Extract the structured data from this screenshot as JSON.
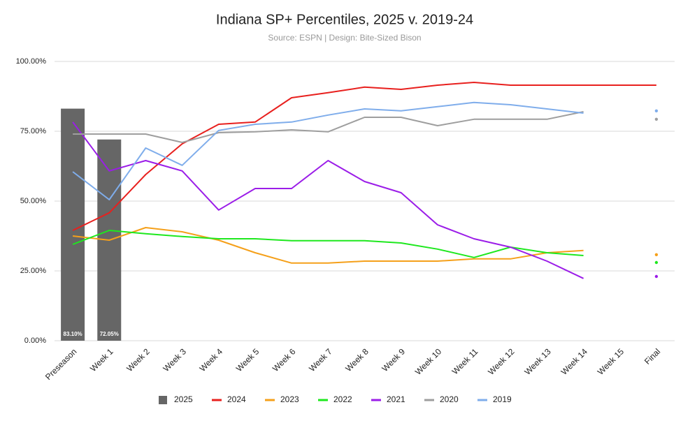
{
  "chart_data": {
    "type": "line",
    "title": "Indiana SP+ Percentiles, 2025 v. 2019-24",
    "subtitle": "Source: ESPN | Design: Bite-Sized Bison",
    "categories": [
      "Preseason",
      "Week 1",
      "Week 2",
      "Week 3",
      "Week 4",
      "Week 5",
      "Week 6",
      "Week 7",
      "Week 8",
      "Week 9",
      "Week 10",
      "Week 11",
      "Week 12",
      "Week 13",
      "Week 14",
      "Week 15",
      "Final"
    ],
    "ylim": [
      0,
      100
    ],
    "yticks": [
      {
        "value": 0,
        "label": "0.00%"
      },
      {
        "value": 25,
        "label": "25.00%"
      },
      {
        "value": 50,
        "label": "50.00%"
      },
      {
        "value": 75,
        "label": "75.00%"
      },
      {
        "value": 100,
        "label": "100.00%"
      }
    ],
    "grid": true,
    "legend": "bottom",
    "series": [
      {
        "name": "2025",
        "type": "bar",
        "color": "#666666",
        "values": [
          83.1,
          72.05,
          null,
          null,
          null,
          null,
          null,
          null,
          null,
          null,
          null,
          null,
          null,
          null,
          null,
          null,
          null
        ],
        "value_labels": [
          "83.10%",
          "72.05%",
          null,
          null,
          null,
          null,
          null,
          null,
          null,
          null,
          null,
          null,
          null,
          null,
          null,
          null,
          null
        ]
      },
      {
        "name": "2024",
        "color": "#e8201e",
        "values": [
          39.5,
          45.8,
          59.5,
          70.5,
          77.5,
          78.3,
          87,
          88.8,
          90.8,
          90,
          91.5,
          92.5,
          91.5,
          91.5,
          91.5,
          91.5,
          91.5
        ]
      },
      {
        "name": "2023",
        "color": "#f5a01a",
        "values": [
          37.5,
          36,
          40.5,
          39,
          36,
          31.5,
          27.8,
          27.8,
          28.5,
          28.5,
          28.5,
          29.3,
          29.3,
          31.5,
          32.3,
          null,
          30.8
        ]
      },
      {
        "name": "2022",
        "color": "#1ee81e",
        "values": [
          34.5,
          39.5,
          38.3,
          37.3,
          36.5,
          36.5,
          35.8,
          35.8,
          35.8,
          35,
          32.8,
          29.8,
          33.5,
          31.5,
          30.5,
          null,
          28
        ]
      },
      {
        "name": "2021",
        "color": "#9b1de8",
        "values": [
          78.3,
          60.8,
          64.5,
          60.8,
          46.8,
          54.5,
          54.5,
          64.5,
          57,
          53,
          41.5,
          36.5,
          33.5,
          28.5,
          22.3,
          null,
          23
        ]
      },
      {
        "name": "2020",
        "color": "#9e9e9e",
        "values": [
          74,
          74,
          74,
          71,
          74.5,
          74.8,
          75.5,
          74.8,
          80,
          80,
          77,
          79.3,
          79.3,
          79.3,
          82,
          null,
          79.3
        ]
      },
      {
        "name": "2019",
        "color": "#7fadeb",
        "values": [
          60.5,
          50.5,
          69,
          62.8,
          75.3,
          77.5,
          78.3,
          80.8,
          83,
          82.3,
          83.8,
          85.3,
          84.5,
          83,
          81.5,
          null,
          82.3
        ]
      }
    ]
  }
}
